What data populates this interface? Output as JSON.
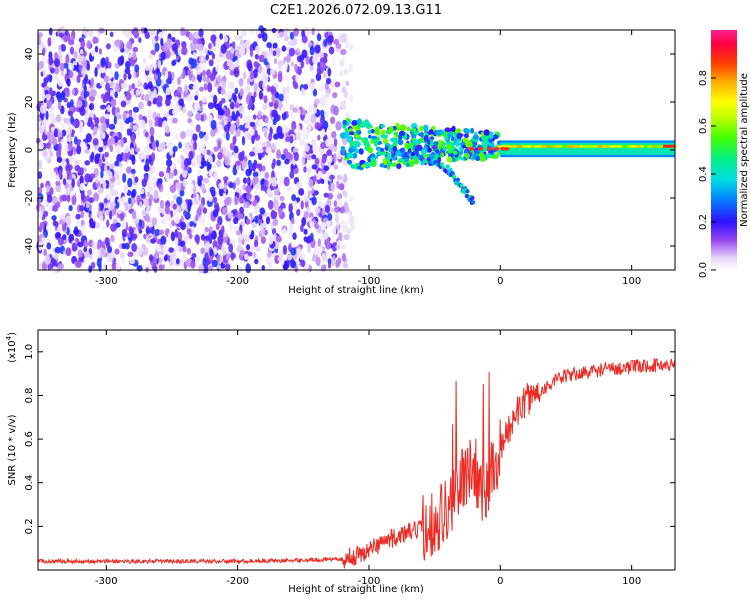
{
  "page": {
    "title": "C2E1.2026.072.09.13.G11"
  },
  "chart_data": [
    {
      "type": "heatmap",
      "xlabel": "Height of straight line (km)",
      "ylabel": "Frequency (Hz)",
      "xlim": [
        -352,
        133
      ],
      "ylim": [
        -50,
        50
      ],
      "xticks": [
        -300,
        -200,
        -100,
        0,
        100
      ],
      "yticks": [
        -40,
        -20,
        0,
        20,
        40
      ],
      "colorbar": {
        "label": "Normalized spectral amplitude",
        "range": [
          0.0,
          1.0
        ],
        "ticks": [
          0.0,
          0.2,
          0.4,
          0.6,
          0.8
        ]
      },
      "features": [
        {
          "kind": "noise",
          "x_range": [
            -352,
            -110
          ],
          "freq_range": [
            -50,
            50
          ],
          "amplitude": 0.1
        },
        {
          "kind": "transition",
          "x_range": [
            -120,
            0
          ],
          "center_freq": 2,
          "amplitude": 0.45
        },
        {
          "kind": "descending_branch",
          "x": [
            -90,
            -60,
            -40,
            -30,
            -20
          ],
          "freq": [
            0,
            -3,
            -8,
            -15,
            -22
          ],
          "amplitude": 0.35
        },
        {
          "kind": "steady_band",
          "x_range": [
            0,
            133
          ],
          "freq_range": [
            -2,
            3
          ],
          "center_freq": 1.5,
          "amplitude": 0.55
        }
      ]
    },
    {
      "type": "line",
      "xlabel": "Height of straight line (km)",
      "ylabel": "SNR (10 * v/v)",
      "multiplier": "(x10",
      "multiplier_exp": "4",
      "multiplier_close": ")",
      "xlim": [
        -352,
        133
      ],
      "ylim": [
        0,
        11000
      ],
      "xticks": [
        -300,
        -200,
        -100,
        0,
        100
      ],
      "yticks": [
        2000,
        4000,
        6000,
        8000,
        10000
      ],
      "ytick_labels": [
        "0.2",
        "0.4",
        "0.6",
        "0.8",
        "1.0"
      ],
      "color": "#ee2a24",
      "series": [
        {
          "x": [
            -352,
            -300,
            -250,
            -200,
            -150,
            -120,
            -110,
            -100,
            -90,
            -80,
            -70,
            -60,
            -50,
            -40,
            -35,
            -30,
            -25,
            -20,
            -15,
            -10,
            -5,
            0,
            5,
            10,
            15,
            20,
            30,
            40,
            50,
            60,
            80,
            100,
            120,
            133
          ],
          "values": [
            400,
            400,
            400,
            400,
            450,
            500,
            650,
            900,
            1300,
            1500,
            1700,
            1900,
            2300,
            2800,
            3200,
            4000,
            4500,
            5000,
            3600,
            3800,
            5000,
            5400,
            6200,
            7000,
            7400,
            7800,
            8200,
            8600,
            8900,
            9000,
            9200,
            9300,
            9400,
            9400
          ]
        }
      ]
    }
  ]
}
